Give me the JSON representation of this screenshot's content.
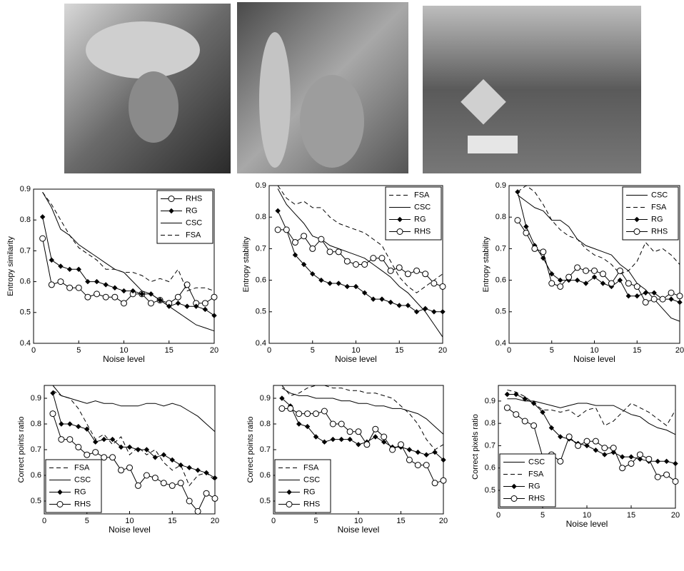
{
  "chart_data": [
    {
      "type": "line",
      "ylabel": "Entropy similarity",
      "xlabel": "Noise level",
      "xlim": [
        0,
        20
      ],
      "xticks": [
        0,
        5,
        10,
        15,
        20
      ],
      "ylim": [
        0.4,
        0.9
      ],
      "yticks": [
        0.4,
        0.5,
        0.6,
        0.7,
        0.8,
        0.9
      ],
      "grid": false,
      "legend": "top-right",
      "x": [
        1,
        2,
        3,
        4,
        5,
        6,
        7,
        8,
        9,
        10,
        11,
        12,
        13,
        14,
        15,
        16,
        17,
        18,
        19,
        20
      ],
      "series": [
        {
          "name": "RHS",
          "color": "#000000",
          "marker": "circle",
          "dash": false,
          "values": [
            0.74,
            0.59,
            0.6,
            0.58,
            0.58,
            0.55,
            0.56,
            0.55,
            0.55,
            0.53,
            0.56,
            0.56,
            0.53,
            0.54,
            0.53,
            0.55,
            0.59,
            0.53,
            0.53,
            0.55
          ]
        },
        {
          "name": "RG",
          "color": "#000000",
          "marker": "diamond",
          "dash": false,
          "values": [
            0.81,
            0.67,
            0.65,
            0.64,
            0.64,
            0.6,
            0.6,
            0.59,
            0.58,
            0.57,
            0.57,
            0.56,
            0.56,
            0.54,
            0.52,
            0.53,
            0.52,
            0.52,
            0.51,
            0.49
          ]
        },
        {
          "name": "CSC",
          "color": "#000000",
          "marker": "none",
          "dash": false,
          "values": [
            0.89,
            0.84,
            0.77,
            0.75,
            0.72,
            0.7,
            0.68,
            0.66,
            0.64,
            0.63,
            0.6,
            0.57,
            0.56,
            0.54,
            0.52,
            0.5,
            0.48,
            0.46,
            0.45,
            0.44
          ]
        },
        {
          "name": "FSA",
          "color": "#000000",
          "marker": "none",
          "dash": true,
          "values": [
            0.89,
            0.85,
            0.8,
            0.75,
            0.71,
            0.69,
            0.67,
            0.64,
            0.64,
            0.63,
            0.63,
            0.62,
            0.6,
            0.61,
            0.6,
            0.64,
            0.57,
            0.58,
            0.58,
            0.57
          ]
        }
      ]
    },
    {
      "type": "line",
      "ylabel": "Entropy stability",
      "xlabel": "Noise level",
      "xlim": [
        0,
        20
      ],
      "xticks": [
        0,
        5,
        10,
        15,
        20
      ],
      "ylim": [
        0.4,
        0.9
      ],
      "yticks": [
        0.4,
        0.5,
        0.6,
        0.7,
        0.8,
        0.9
      ],
      "grid": false,
      "legend": "top-right",
      "x": [
        1,
        2,
        3,
        4,
        5,
        6,
        7,
        8,
        9,
        10,
        11,
        12,
        13,
        14,
        15,
        16,
        17,
        18,
        19,
        20
      ],
      "series": [
        {
          "name": "FSA",
          "color": "#000000",
          "marker": "none",
          "dash": true,
          "values": [
            0.9,
            0.86,
            0.84,
            0.85,
            0.83,
            0.83,
            0.8,
            0.78,
            0.77,
            0.76,
            0.75,
            0.73,
            0.71,
            0.66,
            0.61,
            0.58,
            0.56,
            0.58,
            0.6,
            0.62
          ]
        },
        {
          "name": "CSC",
          "color": "#000000",
          "marker": "none",
          "dash": false,
          "values": [
            0.89,
            0.84,
            0.81,
            0.78,
            0.74,
            0.73,
            0.71,
            0.7,
            0.69,
            0.68,
            0.67,
            0.65,
            0.63,
            0.61,
            0.58,
            0.56,
            0.53,
            0.5,
            0.46,
            0.42
          ]
        },
        {
          "name": "RG",
          "color": "#000000",
          "marker": "diamond",
          "dash": false,
          "values": [
            0.82,
            0.76,
            0.68,
            0.65,
            0.62,
            0.6,
            0.59,
            0.59,
            0.58,
            0.58,
            0.56,
            0.54,
            0.54,
            0.53,
            0.52,
            0.52,
            0.5,
            0.51,
            0.5,
            0.5
          ]
        },
        {
          "name": "RHS",
          "color": "#000000",
          "marker": "circle",
          "dash": false,
          "values": [
            0.76,
            0.76,
            0.72,
            0.74,
            0.7,
            0.73,
            0.69,
            0.69,
            0.66,
            0.65,
            0.65,
            0.67,
            0.67,
            0.63,
            0.64,
            0.62,
            0.63,
            0.62,
            0.59,
            0.58
          ]
        }
      ]
    },
    {
      "type": "line",
      "ylabel": "Entropy stability",
      "xlabel": "Noise level",
      "xlim": [
        0,
        20
      ],
      "xticks": [
        0,
        5,
        10,
        15,
        20
      ],
      "ylim": [
        0.4,
        0.9
      ],
      "yticks": [
        0.4,
        0.5,
        0.6,
        0.7,
        0.8,
        0.9
      ],
      "grid": false,
      "legend": "top-right",
      "x": [
        1,
        2,
        3,
        4,
        5,
        6,
        7,
        8,
        9,
        10,
        11,
        12,
        13,
        14,
        15,
        16,
        17,
        18,
        19,
        20
      ],
      "series": [
        {
          "name": "CSC",
          "color": "#000000",
          "marker": "none",
          "dash": false,
          "values": [
            0.87,
            0.85,
            0.83,
            0.82,
            0.79,
            0.79,
            0.77,
            0.73,
            0.71,
            0.7,
            0.69,
            0.68,
            0.65,
            0.63,
            0.59,
            0.57,
            0.54,
            0.51,
            0.48,
            0.47
          ]
        },
        {
          "name": "FSA",
          "color": "#000000",
          "marker": "none",
          "dash": true,
          "values": [
            0.88,
            0.9,
            0.88,
            0.84,
            0.79,
            0.76,
            0.74,
            0.73,
            0.7,
            0.68,
            0.67,
            0.65,
            0.62,
            0.63,
            0.66,
            0.72,
            0.69,
            0.7,
            0.68,
            0.65
          ]
        },
        {
          "name": "RG",
          "color": "#000000",
          "marker": "diamond",
          "dash": false,
          "values": [
            0.88,
            0.77,
            0.71,
            0.67,
            0.62,
            0.6,
            0.6,
            0.6,
            0.59,
            0.61,
            0.59,
            0.58,
            0.6,
            0.55,
            0.55,
            0.56,
            0.56,
            0.54,
            0.54,
            0.53
          ]
        },
        {
          "name": "RHS",
          "color": "#000000",
          "marker": "circle",
          "dash": false,
          "values": [
            0.79,
            0.75,
            0.7,
            0.69,
            0.59,
            0.58,
            0.61,
            0.64,
            0.63,
            0.63,
            0.62,
            0.59,
            0.63,
            0.59,
            0.58,
            0.53,
            0.54,
            0.54,
            0.56,
            0.55
          ]
        }
      ]
    },
    {
      "type": "line",
      "ylabel": "Correct points ratio",
      "xlabel": "Noise level",
      "xlim": [
        0,
        20
      ],
      "xticks": [
        0,
        5,
        10,
        15,
        20
      ],
      "ylim": [
        0.45,
        0.95
      ],
      "yticks": [
        0.5,
        0.6,
        0.7,
        0.8,
        0.9
      ],
      "grid": false,
      "legend": "bottom-left",
      "x": [
        1,
        2,
        3,
        4,
        5,
        6,
        7,
        8,
        9,
        10,
        11,
        12,
        13,
        14,
        15,
        16,
        17,
        18,
        19,
        20
      ],
      "series": [
        {
          "name": "FSA",
          "color": "#000000",
          "marker": "none",
          "dash": true,
          "values": [
            0.93,
            0.91,
            0.9,
            0.86,
            0.8,
            0.74,
            0.76,
            0.72,
            0.75,
            0.68,
            0.71,
            0.68,
            0.7,
            0.65,
            0.62,
            0.64,
            0.56,
            0.6,
            0.61,
            0.58
          ]
        },
        {
          "name": "CSC",
          "color": "#000000",
          "marker": "none",
          "dash": false,
          "values": [
            0.95,
            0.91,
            0.9,
            0.89,
            0.88,
            0.89,
            0.88,
            0.88,
            0.87,
            0.87,
            0.87,
            0.88,
            0.88,
            0.87,
            0.88,
            0.87,
            0.85,
            0.83,
            0.8,
            0.77
          ]
        },
        {
          "name": "RG",
          "color": "#000000",
          "marker": "diamond",
          "dash": false,
          "values": [
            0.92,
            0.8,
            0.8,
            0.79,
            0.78,
            0.73,
            0.74,
            0.74,
            0.71,
            0.71,
            0.7,
            0.7,
            0.67,
            0.68,
            0.66,
            0.64,
            0.63,
            0.62,
            0.61,
            0.59
          ]
        },
        {
          "name": "RHS",
          "color": "#000000",
          "marker": "circle",
          "dash": false,
          "values": [
            0.84,
            0.74,
            0.74,
            0.71,
            0.68,
            0.69,
            0.67,
            0.67,
            0.62,
            0.63,
            0.56,
            0.6,
            0.59,
            0.57,
            0.56,
            0.57,
            0.5,
            0.46,
            0.53,
            0.51
          ]
        }
      ]
    },
    {
      "type": "line",
      "ylabel": "Correct points ratio",
      "xlabel": "Noise level",
      "xlim": [
        0,
        20
      ],
      "xticks": [
        0,
        5,
        10,
        15,
        20
      ],
      "ylim": [
        0.45,
        0.95
      ],
      "yticks": [
        0.5,
        0.6,
        0.7,
        0.8,
        0.9
      ],
      "grid": false,
      "legend": "bottom-left",
      "x": [
        1,
        2,
        3,
        4,
        5,
        6,
        7,
        8,
        9,
        10,
        11,
        12,
        13,
        14,
        15,
        16,
        17,
        18,
        19,
        20
      ],
      "series": [
        {
          "name": "FSA",
          "color": "#000000",
          "marker": "none",
          "dash": true,
          "values": [
            0.95,
            0.91,
            0.92,
            0.94,
            0.95,
            0.95,
            0.94,
            0.94,
            0.93,
            0.93,
            0.92,
            0.92,
            0.91,
            0.9,
            0.87,
            0.84,
            0.8,
            0.74,
            0.7,
            0.72
          ]
        },
        {
          "name": "CSC",
          "color": "#000000",
          "marker": "none",
          "dash": false,
          "values": [
            0.94,
            0.92,
            0.91,
            0.91,
            0.9,
            0.9,
            0.9,
            0.89,
            0.89,
            0.88,
            0.88,
            0.87,
            0.87,
            0.86,
            0.86,
            0.85,
            0.84,
            0.82,
            0.79,
            0.76
          ]
        },
        {
          "name": "RG",
          "color": "#000000",
          "marker": "diamond",
          "dash": false,
          "values": [
            0.9,
            0.87,
            0.8,
            0.79,
            0.75,
            0.73,
            0.74,
            0.74,
            0.74,
            0.72,
            0.73,
            0.75,
            0.73,
            0.71,
            0.71,
            0.7,
            0.69,
            0.68,
            0.69,
            0.66
          ]
        },
        {
          "name": "RHS",
          "color": "#000000",
          "marker": "circle",
          "dash": false,
          "values": [
            0.86,
            0.86,
            0.84,
            0.84,
            0.84,
            0.85,
            0.8,
            0.8,
            0.77,
            0.77,
            0.72,
            0.78,
            0.75,
            0.7,
            0.72,
            0.66,
            0.64,
            0.64,
            0.57,
            0.58
          ]
        }
      ]
    },
    {
      "type": "line",
      "ylabel": "Correct pixels ratio",
      "xlabel": "Noise level",
      "xlim": [
        0,
        20
      ],
      "xticks": [
        0,
        5,
        10,
        15,
        20
      ],
      "ylim": [
        0.42,
        0.97
      ],
      "yticks": [
        0.5,
        0.6,
        0.7,
        0.8,
        0.9
      ],
      "grid": false,
      "legend": "bottom-left",
      "x": [
        1,
        2,
        3,
        4,
        5,
        6,
        7,
        8,
        9,
        10,
        11,
        12,
        13,
        14,
        15,
        16,
        17,
        18,
        19,
        20
      ],
      "series": [
        {
          "name": "CSC",
          "color": "#000000",
          "marker": "none",
          "dash": false,
          "values": [
            0.91,
            0.91,
            0.9,
            0.9,
            0.89,
            0.88,
            0.87,
            0.88,
            0.89,
            0.89,
            0.88,
            0.88,
            0.88,
            0.86,
            0.84,
            0.83,
            0.8,
            0.78,
            0.77,
            0.75
          ]
        },
        {
          "name": "FSA",
          "color": "#000000",
          "marker": "none",
          "dash": true,
          "values": [
            0.95,
            0.94,
            0.92,
            0.89,
            0.86,
            0.86,
            0.85,
            0.86,
            0.83,
            0.86,
            0.87,
            0.79,
            0.81,
            0.85,
            0.89,
            0.87,
            0.85,
            0.82,
            0.79,
            0.86
          ]
        },
        {
          "name": "RG",
          "color": "#000000",
          "marker": "diamond",
          "dash": false,
          "values": [
            0.93,
            0.93,
            0.91,
            0.89,
            0.85,
            0.78,
            0.74,
            0.73,
            0.71,
            0.7,
            0.68,
            0.66,
            0.67,
            0.65,
            0.65,
            0.64,
            0.63,
            0.63,
            0.63,
            0.62
          ]
        },
        {
          "name": "RHS",
          "color": "#000000",
          "marker": "circle",
          "dash": false,
          "values": [
            0.87,
            0.84,
            0.81,
            0.79,
            0.65,
            0.66,
            0.63,
            0.74,
            0.7,
            0.72,
            0.72,
            0.69,
            0.69,
            0.6,
            0.62,
            0.66,
            0.64,
            0.56,
            0.57,
            0.54
          ]
        }
      ]
    }
  ]
}
